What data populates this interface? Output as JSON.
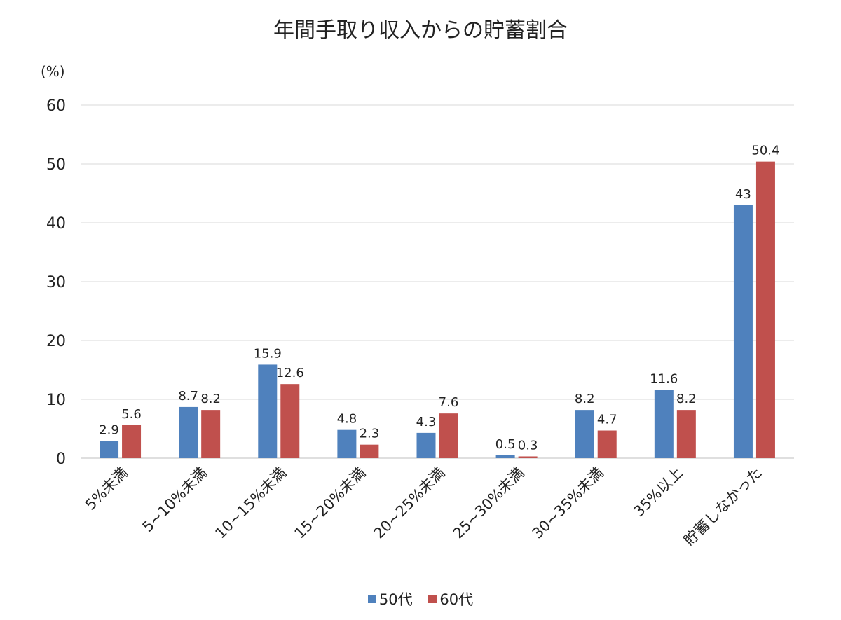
{
  "chart_data": {
    "type": "bar",
    "title": "年間手取り収入からの貯蓄割合",
    "y_unit": "(%)",
    "ylim": [
      0,
      60
    ],
    "yticks": [
      0,
      10,
      20,
      30,
      40,
      50,
      60
    ],
    "grid": true,
    "legend_position": "bottom",
    "categories": [
      "5%未満",
      "5~10%未満",
      "10~15%未満",
      "15~20%未満",
      "20~25%未満",
      "25~30%未満",
      "30~35%未満",
      "35%以上",
      "貯蓄しなかった"
    ],
    "series": [
      {
        "name": "50代",
        "color": "#4f81bd",
        "values": [
          2.9,
          8.7,
          15.9,
          4.8,
          4.3,
          0.5,
          8.2,
          11.6,
          43
        ],
        "labels": [
          "2.9",
          "8.7",
          "15.9",
          "4.8",
          "4.3",
          "0.5",
          "8.2",
          "11.6",
          "43"
        ]
      },
      {
        "name": "60代",
        "color": "#c0504d",
        "values": [
          5.6,
          8.2,
          12.6,
          2.3,
          7.6,
          0.3,
          4.7,
          8.2,
          50.4
        ],
        "labels": [
          "5.6",
          "8.2",
          "12.6",
          "2.3",
          "7.6",
          "0.3",
          "4.7",
          "8.2",
          "50.4"
        ]
      }
    ]
  }
}
